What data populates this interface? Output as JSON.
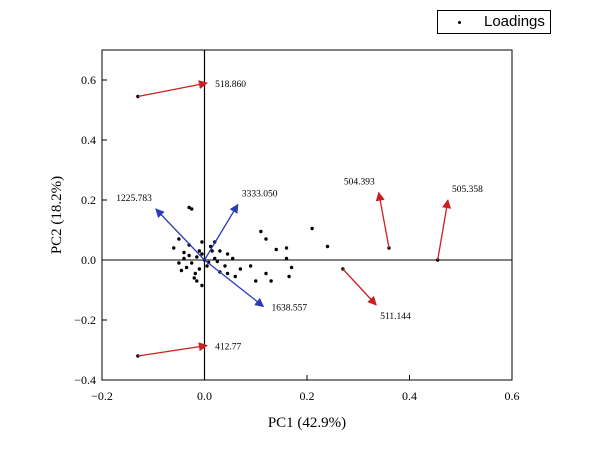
{
  "chart_data": {
    "type": "scatter",
    "title": "",
    "xlabel": "PC1 (42.9%)",
    "ylabel": "PC2 (18.2%)",
    "xlim": [
      -0.2,
      0.6
    ],
    "ylim": [
      -0.4,
      0.7
    ],
    "xticks": [
      -0.2,
      0.0,
      0.2,
      0.4,
      0.6
    ],
    "xtick_labels": [
      "−0.2",
      "0.0",
      "0.2",
      "0.4",
      "0.6"
    ],
    "yticks": [
      -0.4,
      -0.2,
      0.0,
      0.2,
      0.4,
      0.6
    ],
    "ytick_labels": [
      "−0.4",
      "−0.2",
      "0.0",
      "0.2",
      "0.4",
      "0.6"
    ],
    "grid": false,
    "legend": {
      "position": "top-right",
      "entries": [
        "Loadings"
      ]
    },
    "colors": {
      "red_arrow": "#cc1f1f",
      "blue_arrow": "#2a3bb8",
      "points": "#000000"
    },
    "reference_lines": {
      "x": 0,
      "y": 0
    },
    "series": [
      {
        "name": "Loadings",
        "points": [
          [
            -0.13,
            0.545
          ],
          [
            -0.13,
            -0.32
          ],
          [
            0.36,
            0.04
          ],
          [
            0.455,
            0.0
          ],
          [
            0.27,
            -0.03
          ],
          [
            0.21,
            0.105
          ],
          [
            0.24,
            0.045
          ],
          [
            0.11,
            0.095
          ],
          [
            0.12,
            0.07
          ],
          [
            0.14,
            0.035
          ],
          [
            0.16,
            0.005
          ],
          [
            0.165,
            -0.055
          ],
          [
            0.13,
            -0.07
          ],
          [
            0.12,
            -0.045
          ],
          [
            0.09,
            -0.02
          ],
          [
            0.055,
            0.005
          ],
          [
            0.07,
            -0.03
          ],
          [
            0.06,
            -0.055
          ],
          [
            0.045,
            0.02
          ],
          [
            0.03,
            0.03
          ],
          [
            -0.025,
            0.17
          ],
          [
            -0.03,
            0.175
          ],
          [
            -0.005,
            0.06
          ],
          [
            0.015,
            0.03
          ],
          [
            0.025,
            -0.005
          ],
          [
            -0.06,
            0.04
          ],
          [
            -0.05,
            0.07
          ],
          [
            -0.04,
            0.025
          ],
          [
            -0.035,
            -0.025
          ],
          [
            -0.045,
            -0.035
          ],
          [
            -0.02,
            -0.06
          ],
          [
            -0.005,
            -0.085
          ],
          [
            -0.015,
            -0.07
          ],
          [
            -0.01,
            -0.03
          ],
          [
            -0.04,
            0.005
          ],
          [
            -0.03,
            0.015
          ],
          [
            -0.015,
            0.01
          ],
          [
            0.005,
            -0.02
          ],
          [
            0.02,
            0.005
          ],
          [
            -0.005,
            0.02
          ],
          [
            -0.025,
            -0.01
          ],
          [
            0.0,
            0.0
          ],
          [
            0.008,
            -0.008
          ],
          [
            -0.01,
            0.03
          ],
          [
            0.012,
            0.045
          ],
          [
            -0.018,
            -0.045
          ],
          [
            0.03,
            -0.04
          ],
          [
            0.04,
            -0.02
          ],
          [
            -0.05,
            -0.01
          ],
          [
            0.1,
            -0.07
          ],
          [
            0.17,
            -0.025
          ],
          [
            0.16,
            0.04
          ],
          [
            0.045,
            -0.045
          ],
          [
            -0.03,
            0.05
          ],
          [
            0.02,
            0.06
          ]
        ]
      }
    ],
    "arrows": [
      {
        "label": "518.860",
        "color": "red",
        "from": [
          -0.13,
          0.545
        ],
        "to": [
          0.005,
          0.59
        ]
      },
      {
        "label": "412.77",
        "color": "red",
        "from": [
          -0.13,
          -0.32
        ],
        "to": [
          0.005,
          -0.285
        ]
      },
      {
        "label": "504.393",
        "color": "red",
        "from": [
          0.36,
          0.04
        ],
        "to": [
          0.34,
          0.225
        ]
      },
      {
        "label": "505.358",
        "color": "red",
        "from": [
          0.455,
          0.0
        ],
        "to": [
          0.475,
          0.2
        ]
      },
      {
        "label": "511.144",
        "color": "red",
        "from": [
          0.27,
          -0.03
        ],
        "to": [
          0.335,
          -0.15
        ]
      },
      {
        "label": "1225.783",
        "color": "blue",
        "from": [
          0.0,
          0.0
        ],
        "to": [
          -0.095,
          0.17
        ]
      },
      {
        "label": "3333.050",
        "color": "blue",
        "from": [
          0.0,
          0.0
        ],
        "to": [
          0.065,
          0.185
        ]
      },
      {
        "label": "1638.557",
        "color": "blue",
        "from": [
          0.0,
          0.0
        ],
        "to": [
          0.115,
          -0.155
        ]
      }
    ]
  }
}
